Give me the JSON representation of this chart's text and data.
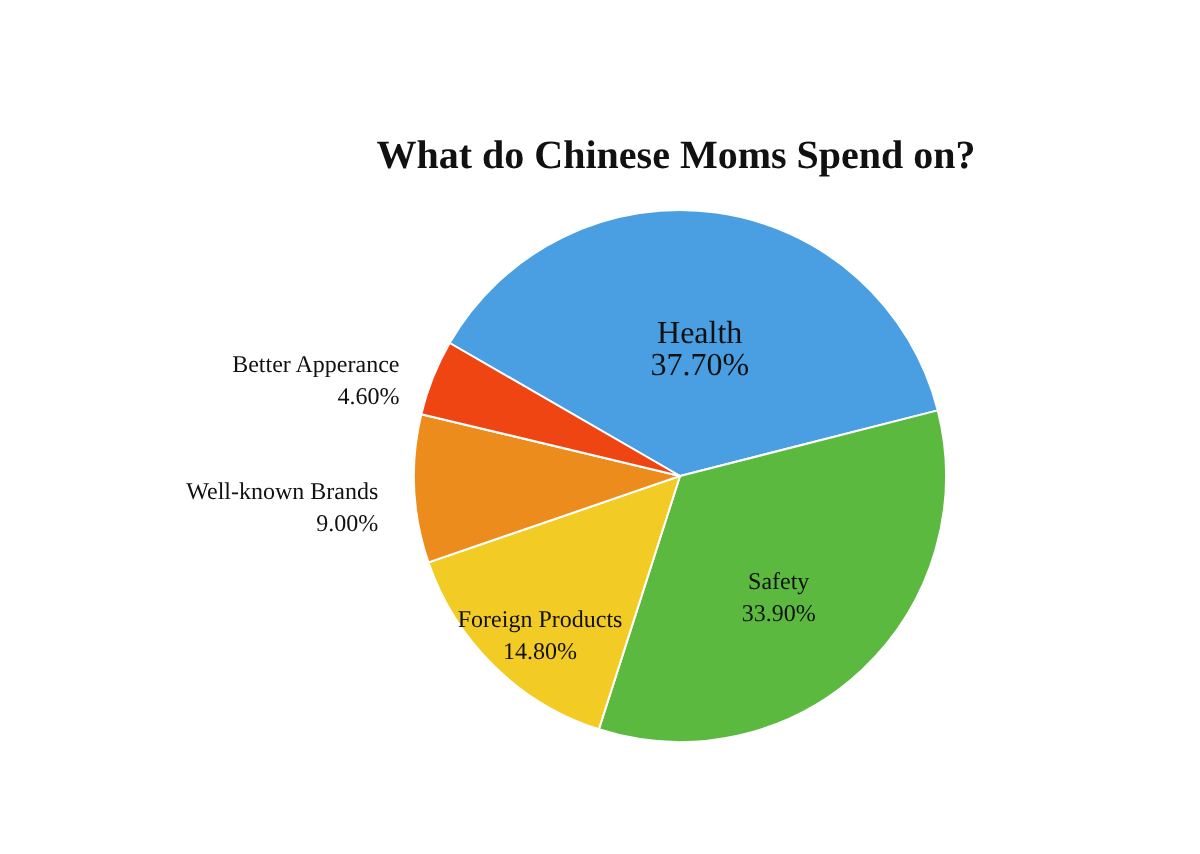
{
  "chart_data": {
    "type": "pie",
    "title": "What do Chinese Moms Spend on?",
    "categories": [
      "Health",
      "Safety",
      "Foreign Products",
      "Well-known Brands",
      "Better Apperance"
    ],
    "values": [
      37.7,
      33.9,
      14.8,
      9.0,
      4.6
    ],
    "colors": [
      "#4a9fe3",
      "#5cb93f",
      "#f2cc24",
      "#ec8c1c",
      "#ee4512"
    ],
    "value_labels": [
      "37.70%",
      "33.90%",
      "14.80%",
      "9.00%",
      "4.60%"
    ]
  }
}
